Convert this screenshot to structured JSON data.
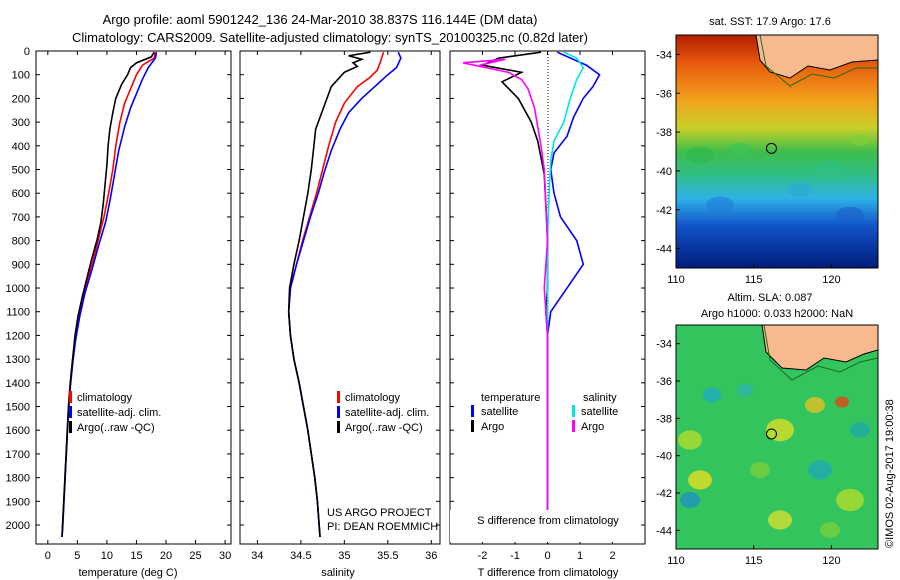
{
  "header": {
    "title_line1": "Argo profile: aoml 5901242_136 24-Mar-2010 38.837S 116.144E (DM data)",
    "title_line2": "Climatology: CARS2009. Satellite-adjusted climatology: synTS_20100325.nc (0.82d later)"
  },
  "colors": {
    "climatology": "#ff0000",
    "satellite": "#0000ff",
    "argo": "#000000",
    "salinity_satellite": "#00e5e5",
    "salinity_argo": "#ff00ff",
    "land": "#f7b98e"
  },
  "chart_data": [
    {
      "type": "line",
      "xlabel": "temperature (deg C)",
      "ylabel": "",
      "xlim": [
        -2,
        31
      ],
      "ylim": [
        2080,
        0
      ],
      "xticks": [
        "0",
        "5",
        "10",
        "15",
        "20",
        "25",
        "30"
      ],
      "yticks": [
        "0",
        "100",
        "200",
        "300",
        "400",
        "500",
        "600",
        "700",
        "800",
        "900",
        "1000",
        "1100",
        "1200",
        "1300",
        "1400",
        "1500",
        "1600",
        "1700",
        "1800",
        "1900",
        "2000"
      ],
      "legend": [
        "climatology",
        "satellite-adj. clim.",
        "Argo(..raw -QC)"
      ],
      "series": [
        {
          "name": "climatology",
          "color": "#ff0000",
          "points": [
            [
              18.2,
              5
            ],
            [
              18,
              30
            ],
            [
              16,
              60
            ],
            [
              15,
              100
            ],
            [
              14,
              160
            ],
            [
              13,
              220
            ],
            [
              12.2,
              300
            ],
            [
              11.5,
              400
            ],
            [
              11,
              500
            ],
            [
              10.3,
              600
            ],
            [
              9.5,
              700
            ],
            [
              8.5,
              800
            ],
            [
              7.5,
              900
            ],
            [
              6.3,
              1000
            ],
            [
              5.4,
              1100
            ],
            [
              4.7,
              1200
            ],
            [
              4.2,
              1300
            ],
            [
              3.8,
              1400
            ],
            [
              3.5,
              1500
            ],
            [
              3.3,
              1600
            ],
            [
              3.1,
              1700
            ],
            [
              2.9,
              1800
            ],
            [
              2.7,
              1900
            ],
            [
              2.5,
              2000
            ],
            [
              2.4,
              2050
            ]
          ]
        },
        {
          "name": "satellite-adj. clim.",
          "color": "#0000ff",
          "points": [
            [
              18.4,
              5
            ],
            [
              18.2,
              30
            ],
            [
              17,
              70
            ],
            [
              16,
              120
            ],
            [
              15,
              180
            ],
            [
              14,
              240
            ],
            [
              13,
              320
            ],
            [
              12,
              420
            ],
            [
              11.3,
              520
            ],
            [
              10.6,
              620
            ],
            [
              9.8,
              720
            ],
            [
              8.6,
              820
            ],
            [
              7.5,
              920
            ],
            [
              6.3,
              1020
            ],
            [
              5.4,
              1120
            ],
            [
              4.7,
              1220
            ],
            [
              4.2,
              1320
            ],
            [
              3.8,
              1420
            ],
            [
              3.5,
              1520
            ],
            [
              3.3,
              1620
            ],
            [
              3.1,
              1720
            ],
            [
              2.9,
              1820
            ],
            [
              2.7,
              1920
            ],
            [
              2.5,
              2020
            ],
            [
              2.4,
              2050
            ]
          ]
        },
        {
          "name": "Argo(..raw -QC)",
          "color": "#000000",
          "points": [
            [
              18,
              5
            ],
            [
              17.5,
              25
            ],
            [
              15,
              50
            ],
            [
              14,
              70
            ],
            [
              13.5,
              100
            ],
            [
              12.5,
              140
            ],
            [
              11.5,
              200
            ],
            [
              11,
              260
            ],
            [
              10.5,
              330
            ],
            [
              10.2,
              400
            ],
            [
              10,
              480
            ],
            [
              9.7,
              560
            ],
            [
              9.4,
              640
            ],
            [
              9,
              720
            ],
            [
              8.3,
              800
            ],
            [
              7.4,
              880
            ],
            [
              6.6,
              960
            ],
            [
              5.8,
              1040
            ],
            [
              5.1,
              1120
            ],
            [
              4.6,
              1200
            ],
            [
              4.2,
              1300
            ],
            [
              3.8,
              1400
            ],
            [
              3.5,
              1500
            ],
            [
              3.3,
              1600
            ],
            [
              3.1,
              1700
            ],
            [
              2.9,
              1800
            ],
            [
              2.7,
              1900
            ],
            [
              2.5,
              2000
            ],
            [
              2.4,
              2050
            ]
          ]
        }
      ]
    },
    {
      "type": "line",
      "xlabel": "salinity",
      "ylabel": "",
      "xlim": [
        33.8,
        36.1
      ],
      "ylim": [
        2080,
        0
      ],
      "xticks": [
        "34",
        "34.5",
        "35",
        "35.5",
        "36"
      ],
      "legend": [
        "climatology",
        "satellite-adj. clim.",
        "Argo(..raw -QC)"
      ],
      "series": [
        {
          "name": "climatology",
          "color": "#ff0000",
          "points": [
            [
              35.45,
              5
            ],
            [
              35.42,
              40
            ],
            [
              35.38,
              80
            ],
            [
              35.3,
              110
            ],
            [
              35.15,
              150
            ],
            [
              35.0,
              220
            ],
            [
              34.9,
              300
            ],
            [
              34.82,
              400
            ],
            [
              34.75,
              500
            ],
            [
              34.68,
              600
            ],
            [
              34.6,
              700
            ],
            [
              34.52,
              800
            ],
            [
              34.45,
              900
            ],
            [
              34.38,
              1000
            ],
            [
              34.36,
              1100
            ],
            [
              34.38,
              1200
            ],
            [
              34.42,
              1300
            ],
            [
              34.48,
              1400
            ],
            [
              34.53,
              1500
            ],
            [
              34.58,
              1600
            ],
            [
              34.62,
              1700
            ],
            [
              34.66,
              1800
            ],
            [
              34.69,
              1900
            ],
            [
              34.71,
              2000
            ],
            [
              34.72,
              2050
            ]
          ]
        },
        {
          "name": "satellite-adj. clim.",
          "color": "#0000ff",
          "points": [
            [
              35.62,
              5
            ],
            [
              35.65,
              30
            ],
            [
              35.6,
              70
            ],
            [
              35.5,
              100
            ],
            [
              35.35,
              150
            ],
            [
              35.2,
              200
            ],
            [
              35.05,
              260
            ],
            [
              34.95,
              330
            ],
            [
              34.85,
              420
            ],
            [
              34.77,
              510
            ],
            [
              34.7,
              600
            ],
            [
              34.61,
              700
            ],
            [
              34.53,
              800
            ],
            [
              34.45,
              900
            ],
            [
              34.38,
              1000
            ],
            [
              34.36,
              1100
            ],
            [
              34.38,
              1200
            ],
            [
              34.42,
              1300
            ],
            [
              34.48,
              1400
            ],
            [
              34.53,
              1500
            ],
            [
              34.58,
              1600
            ],
            [
              34.62,
              1700
            ],
            [
              34.66,
              1800
            ],
            [
              34.69,
              1900
            ],
            [
              34.71,
              2000
            ],
            [
              34.72,
              2050
            ]
          ]
        },
        {
          "name": "Argo(..raw -QC)",
          "color": "#000000",
          "points": [
            [
              35.3,
              5
            ],
            [
              35.05,
              20
            ],
            [
              35.2,
              35
            ],
            [
              35.1,
              50
            ],
            [
              35.15,
              65
            ],
            [
              35.0,
              90
            ],
            [
              34.85,
              150
            ],
            [
              34.78,
              220
            ],
            [
              34.72,
              280
            ],
            [
              34.67,
              330
            ],
            [
              34.65,
              400
            ],
            [
              34.62,
              500
            ],
            [
              34.58,
              600
            ],
            [
              34.53,
              700
            ],
            [
              34.48,
              800
            ],
            [
              34.42,
              900
            ],
            [
              34.37,
              1000
            ],
            [
              34.36,
              1100
            ],
            [
              34.38,
              1200
            ],
            [
              34.42,
              1300
            ],
            [
              34.48,
              1400
            ],
            [
              34.53,
              1500
            ],
            [
              34.58,
              1600
            ],
            [
              34.62,
              1700
            ],
            [
              34.66,
              1800
            ],
            [
              34.69,
              1900
            ],
            [
              34.71,
              2000
            ],
            [
              34.72,
              2050
            ]
          ]
        }
      ],
      "annotation": [
        "US ARGO PROJECT",
        "PI: DEAN ROEMMICH"
      ]
    },
    {
      "type": "line",
      "xlabel_top": "S difference from climatology",
      "xlabel": "T difference from climatology",
      "xlim": [
        -3,
        3
      ],
      "ylim": [
        2080,
        0
      ],
      "xticks": [
        "-2",
        "-1",
        "0",
        "1",
        "2"
      ],
      "xticks_top": [
        "-0.5",
        "-0.25",
        "0",
        "0.25",
        "0.5"
      ],
      "legend_titles": [
        "temperature",
        "salinity"
      ],
      "legend": [
        "satellite",
        "Argo",
        "satellite",
        "Argo"
      ],
      "series": [
        {
          "name": "satellite",
          "color": "#0000ff",
          "points": [
            [
              0.3,
              5
            ],
            [
              1.2,
              60
            ],
            [
              1.6,
              100
            ],
            [
              1.4,
              150
            ],
            [
              1.1,
              200
            ],
            [
              0.8,
              280
            ],
            [
              0.6,
              360
            ],
            [
              0.2,
              430
            ],
            [
              0.1,
              500
            ],
            [
              0.2,
              600
            ],
            [
              0.4,
              700
            ],
            [
              0.9,
              800
            ],
            [
              1.1,
              900
            ],
            [
              0.6,
              1000
            ],
            [
              0.1,
              1100
            ],
            [
              0,
              1200
            ],
            [
              0,
              1300
            ],
            [
              0,
              2050
            ]
          ]
        },
        {
          "name": "Argo",
          "color": "#000000",
          "points": [
            [
              -0.2,
              5
            ],
            [
              -1.5,
              30
            ],
            [
              -2,
              60
            ],
            [
              -0.8,
              90
            ],
            [
              -1.4,
              130
            ],
            [
              -0.9,
              200
            ],
            [
              -0.5,
              300
            ],
            [
              -0.3,
              380
            ],
            [
              -0.2,
              450
            ],
            [
              -0.1,
              520
            ],
            [
              -0.05,
              650
            ],
            [
              0,
              800
            ],
            [
              0,
              1000
            ],
            [
              -0.05,
              1100
            ],
            [
              0,
              1200
            ],
            [
              0,
              2050
            ]
          ]
        },
        {
          "name": "satellite",
          "color": "#00e5e5",
          "points": [
            [
              0.5,
              5
            ],
            [
              0.9,
              30
            ],
            [
              1.1,
              70
            ],
            [
              0.9,
              120
            ],
            [
              0.7,
              200
            ],
            [
              0.5,
              300
            ],
            [
              0.2,
              380
            ],
            [
              0.1,
              460
            ],
            [
              0.05,
              600
            ],
            [
              0,
              800
            ],
            [
              0,
              1000
            ],
            [
              0,
              1200
            ],
            [
              0,
              1400
            ],
            [
              0,
              2050
            ]
          ]
        },
        {
          "name": "Argo",
          "color": "#ff00ff",
          "points": [
            [
              -2.1,
              60
            ],
            [
              -1.3,
              35
            ],
            [
              -2.6,
              50
            ],
            [
              -1.2,
              90
            ],
            [
              -0.8,
              120
            ],
            [
              -0.6,
              160
            ],
            [
              -0.4,
              240
            ],
            [
              -0.2,
              400
            ],
            [
              -0.1,
              500
            ],
            [
              0,
              800
            ],
            [
              -0.1,
              1000
            ],
            [
              -0.05,
              1100
            ],
            [
              0,
              1200
            ],
            [
              0,
              2050
            ]
          ]
        }
      ]
    },
    {
      "type": "heatmap",
      "title": "sat. SST: 17.9 Argo: 17.6",
      "xlim": [
        110,
        123
      ],
      "ylim": [
        -45,
        -33
      ],
      "xticks": [
        "110",
        "115",
        "120"
      ],
      "yticks": [
        "-34",
        "-36",
        "-38",
        "-40",
        "-42",
        "-44"
      ],
      "marker": {
        "lon": 116.144,
        "lat": -38.837
      }
    },
    {
      "type": "heatmap",
      "title_line1": "Altim. SLA: 0.087",
      "title_line2": "Argo h1000: 0.033 h2000: NaN",
      "xlim": [
        110,
        123
      ],
      "ylim": [
        -45,
        -33
      ],
      "xticks": [
        "110",
        "115",
        "120"
      ],
      "yticks": [
        "-34",
        "-36",
        "-38",
        "-40",
        "-42",
        "-44"
      ],
      "marker": {
        "lon": 116.144,
        "lat": -38.837
      },
      "side_label": "©IMOS 02-Aug-2017 19:00:38"
    }
  ]
}
